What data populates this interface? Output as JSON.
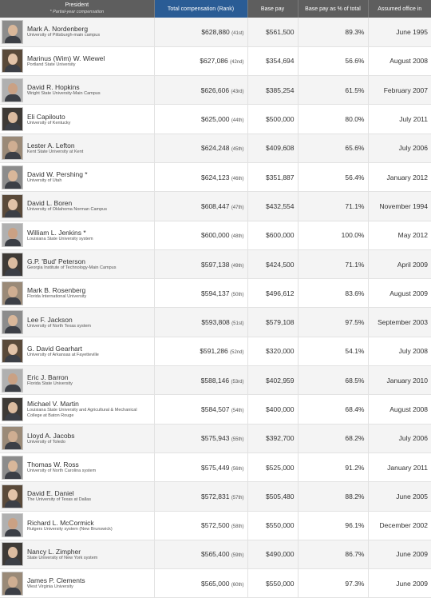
{
  "header": {
    "president": "President",
    "partial_note": "* Partial-year compensation",
    "total": "Total compensation (Rank)",
    "base": "Base pay",
    "pct": "Base pay as % of total",
    "office": "Assumed office in"
  },
  "rows": [
    {
      "name": "Mark A. Nordenberg",
      "inst": "University of Pittsburgh-main campus",
      "total": "$628,880",
      "rank": "(41st)",
      "base": "$561,500",
      "pct": "89.3%",
      "office": "June 1995"
    },
    {
      "name": "Marinus (Wim) W. Wiewel",
      "inst": "Portland State University",
      "total": "$627,086",
      "rank": "(42nd)",
      "base": "$354,694",
      "pct": "56.6%",
      "office": "August 2008"
    },
    {
      "name": "David R. Hopkins",
      "inst": "Wright State University-Main Campus",
      "total": "$626,606",
      "rank": "(43rd)",
      "base": "$385,254",
      "pct": "61.5%",
      "office": "February 2007"
    },
    {
      "name": "Eli Capilouto",
      "inst": "University of Kentucky",
      "total": "$625,000",
      "rank": "(44th)",
      "base": "$500,000",
      "pct": "80.0%",
      "office": "July 2011"
    },
    {
      "name": "Lester A. Lefton",
      "inst": "Kent State University at Kent",
      "total": "$624,248",
      "rank": "(45th)",
      "base": "$409,608",
      "pct": "65.6%",
      "office": "July 2006"
    },
    {
      "name": "David W. Pershing *",
      "inst": "University of Utah",
      "total": "$624,123",
      "rank": "(46th)",
      "base": "$351,887",
      "pct": "56.4%",
      "office": "January 2012"
    },
    {
      "name": "David L. Boren",
      "inst": "University of Oklahoma Norman Campus",
      "total": "$608,447",
      "rank": "(47th)",
      "base": "$432,554",
      "pct": "71.1%",
      "office": "November 1994"
    },
    {
      "name": "William L. Jenkins *",
      "inst": "Louisiana State University system",
      "total": "$600,000",
      "rank": "(48th)",
      "base": "$600,000",
      "pct": "100.0%",
      "office": "May 2012"
    },
    {
      "name": "G.P. 'Bud' Peterson",
      "inst": "Georgia Institute of Technology-Main Campus",
      "total": "$597,138",
      "rank": "(49th)",
      "base": "$424,500",
      "pct": "71.1%",
      "office": "April 2009"
    },
    {
      "name": "Mark B. Rosenberg",
      "inst": "Florida International University",
      "total": "$594,137",
      "rank": "(50th)",
      "base": "$496,612",
      "pct": "83.6%",
      "office": "August 2009"
    },
    {
      "name": "Lee F. Jackson",
      "inst": "University of North Texas system",
      "total": "$593,808",
      "rank": "(51st)",
      "base": "$579,108",
      "pct": "97.5%",
      "office": "September 2003"
    },
    {
      "name": "G. David Gearhart",
      "inst": "University of Arkansas at Fayetteville",
      "total": "$591,286",
      "rank": "(52nd)",
      "base": "$320,000",
      "pct": "54.1%",
      "office": "July 2008"
    },
    {
      "name": "Eric J. Barron",
      "inst": "Florida State University",
      "total": "$588,146",
      "rank": "(53rd)",
      "base": "$402,959",
      "pct": "68.5%",
      "office": "January 2010"
    },
    {
      "name": "Michael V. Martin",
      "inst": "Louisiana State University and Agricultural & Mechanical College at Baton Rouge",
      "total": "$584,507",
      "rank": "(54th)",
      "base": "$400,000",
      "pct": "68.4%",
      "office": "August 2008"
    },
    {
      "name": "Lloyd A. Jacobs",
      "inst": "University of Toledo",
      "total": "$575,943",
      "rank": "(55th)",
      "base": "$392,700",
      "pct": "68.2%",
      "office": "July 2006"
    },
    {
      "name": "Thomas W. Ross",
      "inst": "University of North Carolina system",
      "total": "$575,449",
      "rank": "(56th)",
      "base": "$525,000",
      "pct": "91.2%",
      "office": "January 2011"
    },
    {
      "name": "David E. Daniel",
      "inst": "The University of Texas at Dallas",
      "total": "$572,831",
      "rank": "(57th)",
      "base": "$505,480",
      "pct": "88.2%",
      "office": "June 2005"
    },
    {
      "name": "Richard L. McCormick",
      "inst": "Rutgers University system (New Brunswick)",
      "total": "$572,500",
      "rank": "(58th)",
      "base": "$550,000",
      "pct": "96.1%",
      "office": "December 2002"
    },
    {
      "name": "Nancy L. Zimpher",
      "inst": "State University of New York system",
      "total": "$565,400",
      "rank": "(59th)",
      "base": "$490,000",
      "pct": "86.7%",
      "office": "June 2009"
    },
    {
      "name": "James P. Clements",
      "inst": "West Virginia University",
      "total": "$565,000",
      "rank": "(60th)",
      "base": "$550,000",
      "pct": "97.3%",
      "office": "June 2009"
    }
  ]
}
